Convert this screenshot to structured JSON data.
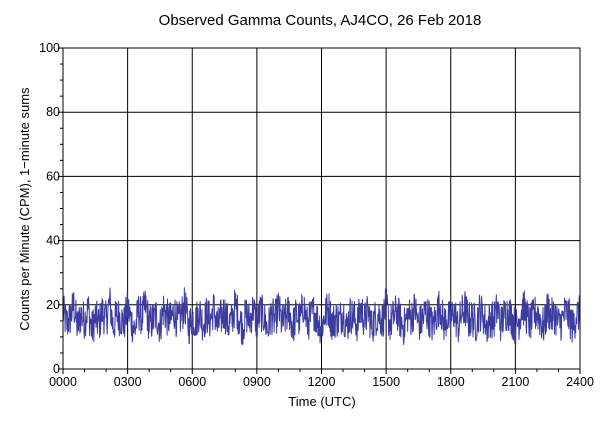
{
  "chart_data": {
    "type": "line",
    "title": "Observed Gamma Counts, AJ4CO, 26 Feb 2018",
    "xlabel": "Time (UTC)",
    "ylabel": "Counts per Minute (CPM), 1−minute sums",
    "xlim": [
      0,
      1440
    ],
    "ylim": [
      0,
      100
    ],
    "x_ticks": [
      {
        "value": 0,
        "label": "0000"
      },
      {
        "value": 180,
        "label": "0300"
      },
      {
        "value": 360,
        "label": "0600"
      },
      {
        "value": 540,
        "label": "0900"
      },
      {
        "value": 720,
        "label": "1200"
      },
      {
        "value": 900,
        "label": "1500"
      },
      {
        "value": 1080,
        "label": "1800"
      },
      {
        "value": 1260,
        "label": "2100"
      },
      {
        "value": 1440,
        "label": "2400"
      }
    ],
    "y_ticks": [
      {
        "value": 0,
        "label": "0"
      },
      {
        "value": 20,
        "label": "20"
      },
      {
        "value": 40,
        "label": "40"
      },
      {
        "value": 60,
        "label": "60"
      },
      {
        "value": 80,
        "label": "80"
      },
      {
        "value": 100,
        "label": "100"
      }
    ],
    "grid": true,
    "series": [
      {
        "color": "#3b3ba0",
        "x_start": 0,
        "x_step": 10,
        "y": [
          18,
          14,
          16,
          20,
          13,
          17,
          15,
          19,
          12,
          16,
          14,
          18,
          15,
          21,
          13,
          17,
          16,
          14,
          19,
          15,
          12,
          18,
          16,
          20,
          14,
          15,
          17,
          13,
          19,
          16,
          15,
          18,
          14,
          17,
          20,
          13,
          16,
          15,
          18,
          14,
          17,
          15,
          19,
          13,
          16,
          18,
          14,
          15,
          20,
          16,
          13,
          17,
          15,
          19,
          14,
          18,
          16,
          12,
          17,
          15,
          19,
          14,
          16,
          18,
          13,
          17,
          15,
          20,
          14,
          16,
          18,
          15,
          13,
          17,
          19,
          14,
          16,
          15,
          18,
          13,
          17,
          16,
          14,
          19,
          15,
          18,
          13,
          16,
          17,
          15,
          20,
          14,
          16,
          18,
          15,
          13,
          17,
          16,
          19,
          14,
          15,
          18,
          16,
          13,
          17,
          20,
          14,
          16,
          15,
          18,
          13,
          17,
          19,
          15,
          16,
          14,
          18,
          17,
          13,
          16,
          15,
          19,
          14,
          17,
          18,
          16,
          13,
          15,
          20,
          17,
          14,
          16,
          18,
          15,
          13,
          19,
          16,
          17,
          14,
          15,
          18,
          16,
          13,
          17
        ]
      }
    ]
  }
}
